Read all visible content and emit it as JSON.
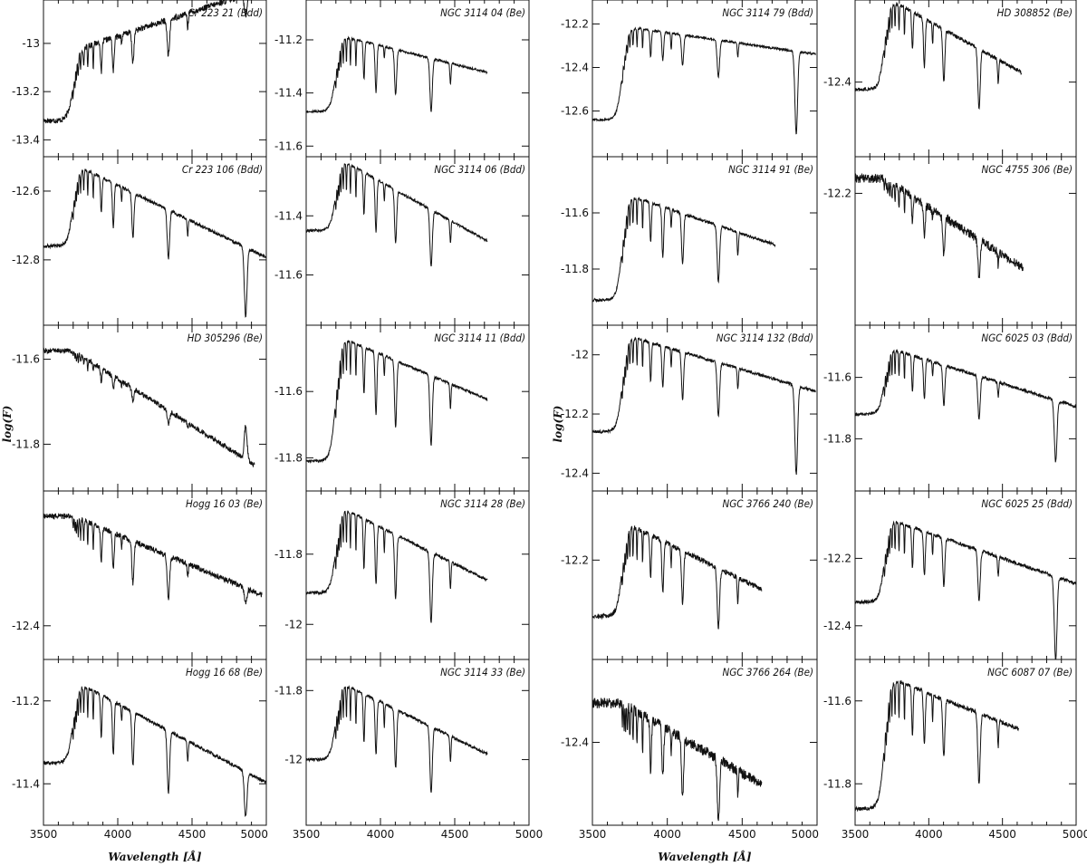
{
  "chart_data": {
    "type": "line",
    "xlabel": "Wavelength [Å]",
    "ylabel": "log(F)",
    "xlim": [
      3500,
      5000
    ],
    "x_ticks": [
      "3500",
      "4000",
      "4500",
      "5000"
    ],
    "grid": false,
    "panels": [
      {
        "col": 0,
        "row": 0,
        "label": "Cr 223 21 (Bdd)",
        "ylim": [
          -13.47,
          -12.82
        ],
        "yticks": [
          "-13",
          "-13.2",
          "-13.4"
        ],
        "ytick_values": [
          -13,
          -13.2,
          -13.4
        ],
        "x_end": 4990,
        "slope": 0.2,
        "jump": 0.29,
        "start": -13.32,
        "noise": 0.012,
        "depth": [
          0.13,
          0.14,
          0.13,
          0.15,
          0.17,
          0.13,
          0.09
        ]
      },
      {
        "col": 0,
        "row": 1,
        "label": "Cr 223 106 (Bdd)",
        "ylim": [
          -12.99,
          -12.5
        ],
        "yticks": [
          "-12.6",
          "-12.8"
        ],
        "ytick_values": [
          -12.6,
          -12.8
        ],
        "x_end": 5000,
        "slope": -0.21,
        "jump": 0.24,
        "start": -12.76,
        "noise": 0.005,
        "depth": [
          0.1,
          0.13,
          0.13,
          0.14,
          0.13,
          0.14,
          0.2
        ]
      },
      {
        "col": 0,
        "row": 2,
        "label": "HD 305296 (Be)",
        "ylim": [
          -11.91,
          -11.52
        ],
        "yticks": [
          "-11.6",
          "-11.8"
        ],
        "ytick_values": [
          -11.6,
          -11.8
        ],
        "x_end": 4920,
        "slope": -0.22,
        "jump": 0.0,
        "start": -11.58,
        "noise": 0.006,
        "depth": [
          0.03,
          0.03,
          0.03,
          0.03,
          0.04,
          0.04,
          -0.08
        ]
      },
      {
        "col": 0,
        "row": 3,
        "label": "Hogg 16 03 (Be)",
        "ylim": [
          -12.52,
          -11.92
        ],
        "yticks": [
          "-12.4"
        ],
        "ytick_values": [
          -12.4
        ],
        "x_end": 4970,
        "slope": -0.22,
        "jump": 0.0,
        "start": -12.01,
        "noise": 0.01,
        "depth": [
          0.12,
          0.13,
          0.15,
          0.15,
          0.15,
          0.13,
          0.05
        ]
      },
      {
        "col": 0,
        "row": 4,
        "label": "Hogg 16 68 (Be)",
        "ylim": [
          -11.5,
          -11.1
        ],
        "yticks": [
          "-11.2",
          "-11.4"
        ],
        "ytick_values": [
          -11.2,
          -11.4
        ],
        "x_end": 5000,
        "slope": -0.19,
        "jump": 0.2,
        "start": -11.35,
        "noise": 0.004,
        "depth": [
          0.1,
          0.13,
          0.13,
          0.15,
          0.15,
          0.13,
          0.11
        ]
      },
      {
        "col": 1,
        "row": 0,
        "label": "NGC 3114 04 (Be)",
        "ylim": [
          -11.64,
          -11.05
        ],
        "yticks": [
          "-11.2",
          "-11.4",
          "-11.6"
        ],
        "ytick_values": [
          -11.2,
          -11.4,
          -11.6
        ],
        "x_end": 4720,
        "slope": -0.14,
        "jump": 0.29,
        "start": -11.47,
        "noise": 0.004,
        "depth": [
          0.14,
          0.18,
          0.17,
          0.2,
          0.23,
          0.15,
          0.05
        ]
      },
      {
        "col": 1,
        "row": 1,
        "label": "NGC 3114 06 (Bdd)",
        "ylim": [
          -11.77,
          -11.2
        ],
        "yticks": [
          "-11.4",
          "-11.6"
        ],
        "ytick_values": [
          -11.4,
          -11.6
        ],
        "x_end": 4720,
        "slope": -0.28,
        "jump": 0.25,
        "start": -11.45,
        "noise": 0.004,
        "depth": [
          0.14,
          0.18,
          0.18,
          0.19,
          0.22,
          0.2,
          0.05
        ]
      },
      {
        "col": 1,
        "row": 2,
        "label": "NGC 3114 11 (Bdd)",
        "ylim": [
          -11.9,
          -11.4
        ],
        "yticks": [
          "-11.6",
          "-11.8"
        ],
        "ytick_values": [
          -11.6,
          -11.8
        ],
        "x_end": 4720,
        "slope": -0.19,
        "jump": 0.38,
        "start": -11.81,
        "noise": 0.004,
        "depth": [
          0.14,
          0.19,
          0.2,
          0.21,
          0.22,
          0.2,
          0.05
        ]
      },
      {
        "col": 1,
        "row": 3,
        "label": "NGC 3114 28 (Be)",
        "ylim": [
          -12.1,
          -11.62
        ],
        "yticks": [
          "-11.8",
          "-12"
        ],
        "ytick_values": [
          -11.8,
          -12
        ],
        "x_end": 4720,
        "slope": -0.21,
        "jump": 0.25,
        "start": -11.91,
        "noise": 0.004,
        "depth": [
          0.14,
          0.17,
          0.18,
          0.2,
          0.22,
          0.22,
          0.05
        ]
      },
      {
        "col": 1,
        "row": 4,
        "label": "NGC 3114 33 (Be)",
        "ylim": [
          -12.19,
          -11.71
        ],
        "yticks": [
          "-11.8",
          "-12"
        ],
        "ytick_values": [
          -11.8,
          -12
        ],
        "x_end": 4720,
        "slope": -0.21,
        "jump": 0.23,
        "start": -12.0,
        "noise": 0.004,
        "depth": [
          0.14,
          0.16,
          0.17,
          0.19,
          0.21,
          0.22,
          0.05
        ]
      },
      {
        "col": 2,
        "row": 0,
        "label": "NGC 3114 79 (Bdd)",
        "ylim": [
          -12.81,
          -12.09
        ],
        "yticks": [
          "-12.2",
          "-12.4",
          "-12.6"
        ],
        "ytick_values": [
          -12.2,
          -12.4,
          -12.6
        ],
        "x_end": 4990,
        "slope": -0.1,
        "jump": 0.43,
        "start": -12.64,
        "noise": 0.005,
        "depth": [
          0.12,
          0.13,
          0.14,
          0.17,
          0.18,
          0.26,
          0.38
        ]
      },
      {
        "col": 2,
        "row": 1,
        "label": "NGC 3114 91 (Be)",
        "ylim": [
          -12.0,
          -11.4
        ],
        "yticks": [
          "-11.6",
          "-11.8"
        ],
        "ytick_values": [
          -11.6,
          -11.8
        ],
        "x_end": 4720,
        "slope": -0.18,
        "jump": 0.38,
        "start": -11.91,
        "noise": 0.005,
        "depth": [
          0.14,
          0.18,
          0.18,
          0.2,
          0.24,
          0.22,
          0.05
        ]
      },
      {
        "col": 2,
        "row": 2,
        "label": "NGC 3114 132 (Bdd)",
        "ylim": [
          -12.46,
          -11.9
        ],
        "yticks": [
          "-12",
          "-12.2",
          "-12.4"
        ],
        "ytick_values": [
          -12,
          -12.2,
          -12.4
        ],
        "x_end": 4990,
        "slope": -0.15,
        "jump": 0.33,
        "start": -12.26,
        "noise": 0.005,
        "depth": [
          0.13,
          0.14,
          0.16,
          0.18,
          0.2,
          0.21,
          0.3
        ]
      },
      {
        "col": 2,
        "row": 3,
        "label": "NGC 3766 240 (Be)",
        "ylim": [
          -12.43,
          -12.04
        ],
        "yticks": [
          "-12.2"
        ],
        "ytick_values": [
          -12.2
        ],
        "x_end": 4630,
        "slope": -0.17,
        "jump": 0.22,
        "start": -12.33,
        "noise": 0.006,
        "depth": [
          0.1,
          0.12,
          0.12,
          0.14,
          0.17,
          0.17,
          0.05
        ]
      },
      {
        "col": 2,
        "row": 4,
        "label": "NGC 3766 264 (Be)",
        "ylim": [
          -12.59,
          -12.21
        ],
        "yticks": [
          "-12.4"
        ],
        "ytick_values": [
          -12.4
        ],
        "x_end": 4630,
        "slope": -0.2,
        "jump": 0.0,
        "start": -12.31,
        "noise": 0.012,
        "depth": [
          0.12,
          0.12,
          0.14,
          0.14,
          0.16,
          0.16,
          0.05
        ]
      },
      {
        "col": 3,
        "row": 0,
        "label": "HD 308852 (Be)",
        "ylim": [
          -12.6,
          -12.18
        ],
        "yticks": [
          "-12.4"
        ],
        "ytick_values": [
          -12.4
        ],
        "x_end": 4630,
        "slope": -0.22,
        "jump": 0.25,
        "start": -12.42,
        "noise": 0.005,
        "depth": [
          0.1,
          0.13,
          0.14,
          0.16,
          0.18,
          0.2,
          0.05
        ]
      },
      {
        "col": 3,
        "row": 1,
        "label": "NGC 4755 306 (Be)",
        "ylim": [
          -12.56,
          -12.1
        ],
        "yticks": [
          "-12.2"
        ],
        "ytick_values": [
          -12.2
        ],
        "x_end": 4640,
        "slope": -0.26,
        "jump": 0.0,
        "start": -12.16,
        "noise": 0.012,
        "depth": [
          0.07,
          0.09,
          0.1,
          0.1,
          0.1,
          0.1,
          0.05
        ]
      },
      {
        "col": 3,
        "row": 2,
        "label": "NGC 6025 03 (Bdd)",
        "ylim": [
          -11.97,
          -11.43
        ],
        "yticks": [
          "-11.6",
          "-11.8"
        ],
        "ytick_values": [
          -11.6,
          -11.8
        ],
        "x_end": 5000,
        "slope": -0.15,
        "jump": 0.22,
        "start": -11.72,
        "noise": 0.005,
        "depth": [
          0.12,
          0.13,
          0.13,
          0.14,
          0.14,
          0.16,
          0.2
        ]
      },
      {
        "col": 3,
        "row": 3,
        "label": "NGC 6025 25 (Bdd)",
        "ylim": [
          -12.5,
          -12.0
        ],
        "yticks": [
          "-12.2",
          "-12.4"
        ],
        "ytick_values": [
          -12.2,
          -12.4
        ],
        "x_end": 5000,
        "slope": -0.15,
        "jump": 0.25,
        "start": -12.33,
        "noise": 0.005,
        "depth": [
          0.12,
          0.13,
          0.14,
          0.15,
          0.16,
          0.2,
          0.25
        ]
      },
      {
        "col": 3,
        "row": 4,
        "label": "NGC 6087 07 (Be)",
        "ylim": [
          -11.9,
          -11.5
        ],
        "yticks": [
          "-11.6",
          "-11.8"
        ],
        "ytick_values": [
          -11.6,
          -11.8
        ],
        "x_end": 4610,
        "slope": -0.14,
        "jump": 0.32,
        "start": -11.86,
        "noise": 0.005,
        "depth": [
          0.12,
          0.13,
          0.14,
          0.17,
          0.18,
          0.21,
          0.05
        ]
      }
    ]
  }
}
